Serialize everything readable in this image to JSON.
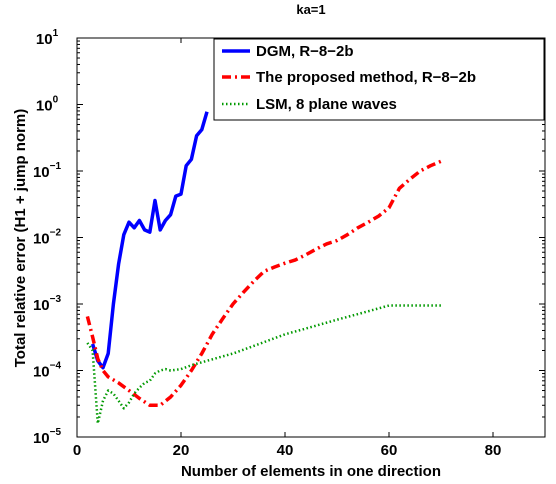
{
  "chart_data": {
    "type": "line",
    "title": "ka=1",
    "xlabel": "Number of elements in one direction",
    "ylabel": "Total relative error (H1 + jump norm)",
    "xlim": [
      0,
      90
    ],
    "ylim": [
      1e-05,
      10
    ],
    "yscale": "log",
    "xticks": [
      0,
      20,
      40,
      60,
      80
    ],
    "yticks": [
      {
        "value": 1e-05,
        "base": "10",
        "exp": "−5"
      },
      {
        "value": 0.0001,
        "base": "10",
        "exp": "−4"
      },
      {
        "value": 0.001,
        "base": "10",
        "exp": "−3"
      },
      {
        "value": 0.01,
        "base": "10",
        "exp": "−2"
      },
      {
        "value": 0.1,
        "base": "10",
        "exp": "−1"
      },
      {
        "value": 1,
        "base": "10",
        "exp": "0"
      },
      {
        "value": 10,
        "base": "10",
        "exp": "1"
      }
    ],
    "legend_position": "top-right",
    "series": [
      {
        "name": "DGM, R−8−2b",
        "color": "#0000ff",
        "style": "solid",
        "x": [
          3,
          4,
          5,
          6,
          7,
          8,
          9,
          10,
          11,
          12,
          13,
          14,
          15,
          16,
          17,
          18,
          19,
          20,
          21,
          22,
          23,
          24,
          25
        ],
        "y": [
          0.00025,
          0.00014,
          0.00011,
          0.00018,
          0.001,
          0.004,
          0.011,
          0.017,
          0.014,
          0.018,
          0.013,
          0.012,
          0.036,
          0.013,
          0.018,
          0.022,
          0.042,
          0.045,
          0.12,
          0.15,
          0.34,
          0.42,
          0.78
        ]
      },
      {
        "name": "The proposed method, R−8−2b",
        "color": "#ff0000",
        "style": "dashdot",
        "x": [
          2,
          3,
          4,
          5,
          6,
          8,
          10,
          12,
          14,
          16,
          18,
          20,
          22,
          24,
          26,
          28,
          30,
          32,
          34,
          36,
          38,
          40,
          42,
          44,
          46,
          48,
          50,
          52,
          54,
          56,
          58,
          60,
          62,
          64,
          66,
          68,
          70
        ],
        "y": [
          0.00065,
          0.00032,
          0.00015,
          0.0001,
          8e-05,
          6.5e-05,
          5e-05,
          3.8e-05,
          3e-05,
          3e-05,
          4e-05,
          6e-05,
          0.0001,
          0.00018,
          0.00035,
          0.0006,
          0.001,
          0.0015,
          0.0022,
          0.0031,
          0.0036,
          0.0041,
          0.0046,
          0.0055,
          0.0067,
          0.008,
          0.009,
          0.011,
          0.014,
          0.017,
          0.021,
          0.028,
          0.055,
          0.075,
          0.1,
          0.12,
          0.14
        ]
      },
      {
        "name": "LSM, 8 plane waves",
        "color": "#009900",
        "style": "dotted",
        "x": [
          2,
          3,
          4,
          5,
          6,
          7,
          8,
          9,
          10,
          11,
          12,
          13,
          14,
          15,
          16,
          17,
          18,
          20,
          22,
          25,
          30,
          35,
          40,
          45,
          50,
          55,
          60,
          65,
          70
        ],
        "y": [
          0.00026,
          0.0002,
          1.6e-05,
          3.5e-05,
          5e-05,
          4.5e-05,
          3.5e-05,
          2.7e-05,
          3.3e-05,
          4.5e-05,
          5.5e-05,
          6.5e-05,
          7e-05,
          9e-05,
          0.0001,
          0.000105,
          0.0001,
          0.000105,
          0.00012,
          0.00014,
          0.00018,
          0.00025,
          0.00035,
          0.00045,
          0.00058,
          0.00074,
          0.00095,
          0.00095,
          0.00095
        ]
      }
    ]
  }
}
